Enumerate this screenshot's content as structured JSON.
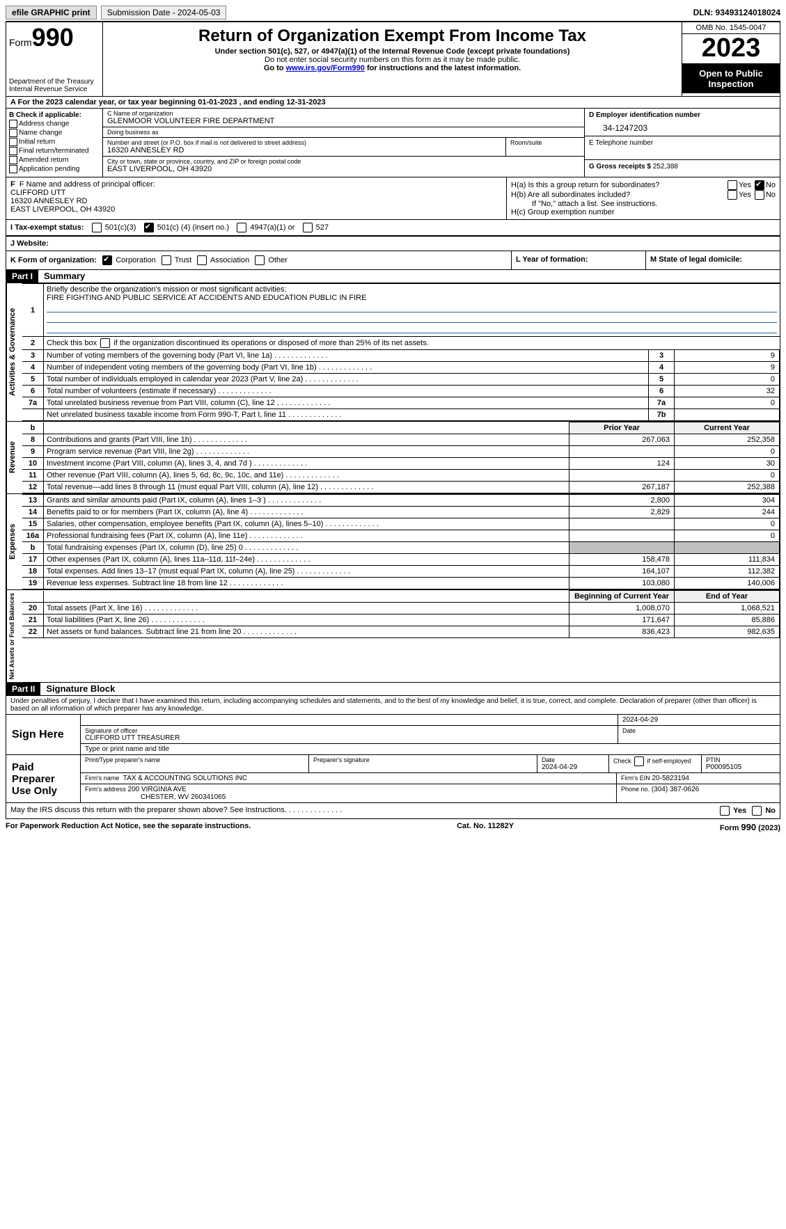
{
  "topbar": {
    "efile": "efile GRAPHIC print",
    "submission": "Submission Date - 2024-05-03",
    "dln": "DLN: 93493124018024"
  },
  "header": {
    "form_word": "Form",
    "form_num": "990",
    "title": "Return of Organization Exempt From Income Tax",
    "subtitle1": "Under section 501(c), 527, or 4947(a)(1) of the Internal Revenue Code (except private foundations)",
    "subtitle2": "Do not enter social security numbers on this form as it may be made public.",
    "subtitle3_pre": "Go to ",
    "subtitle3_link": "www.irs.gov/Form990",
    "subtitle3_post": " for instructions and the latest information.",
    "dept": "Department of the Treasury",
    "irs": "Internal Revenue Service",
    "omb": "OMB No. 1545-0047",
    "year": "2023",
    "inspect": "Open to Public Inspection"
  },
  "period": {
    "text_a": "A For the 2023 calendar year, or tax year beginning ",
    "begin": "01-01-2023",
    "text_mid": " , and ending ",
    "end": "12-31-2023"
  },
  "boxB": {
    "title": "B Check if applicable:",
    "items": [
      "Address change",
      "Name change",
      "Initial return",
      "Final return/terminated",
      "Amended return",
      "Application pending"
    ]
  },
  "boxC": {
    "label_name": "C Name of organization",
    "name": "GLENMOOR VOLUNTEER FIRE DEPARTMENT",
    "label_dba": "Doing business as",
    "dba": "",
    "label_street": "Number and street (or P.O. box if mail is not delivered to street address)",
    "street": "16320 ANNESLEY RD",
    "label_room": "Room/suite",
    "room": "",
    "label_city": "City or town, state or province, country, and ZIP or foreign postal code",
    "city": "EAST LIVERPOOL, OH  43920"
  },
  "boxD": {
    "label": "D Employer identification number",
    "val": "34-1247203"
  },
  "boxE": {
    "label": "E Telephone number",
    "val": ""
  },
  "boxG": {
    "label": "G Gross receipts $",
    "val": "252,388"
  },
  "boxF": {
    "label": "F  Name and address of principal officer:",
    "name": "CLIFFORD UTT",
    "street": "16320 ANNESLEY RD",
    "city": "EAST LIVERPOOL, OH  43920"
  },
  "boxH": {
    "a_label": "H(a)  Is this a group return for subordinates?",
    "a_yes": "Yes",
    "a_no": "No",
    "b_label": "H(b)  Are all subordinates included?",
    "b_yes": "Yes",
    "b_no": "No",
    "b_note": "If \"No,\" attach a list. See instructions.",
    "c_label": "H(c)  Group exemption number"
  },
  "boxI": {
    "label": "I  Tax-exempt status:",
    "o1": "501(c)(3)",
    "o2a": "501(c) (",
    "o2_num": "4",
    "o2b": ") (insert no.)",
    "o3": "4947(a)(1) or",
    "o4": "527"
  },
  "boxJ": {
    "label": "J  Website:",
    "val": ""
  },
  "boxK": {
    "label": "K Form of organization:",
    "o1": "Corporation",
    "o2": "Trust",
    "o3": "Association",
    "o4": "Other"
  },
  "boxL": {
    "label": "L Year of formation:",
    "val": ""
  },
  "boxM": {
    "label": "M State of legal domicile:",
    "val": ""
  },
  "part1": {
    "tag": "Part I",
    "title": "Summary",
    "l1_label": "Briefly describe the organization's mission or most significant activities:",
    "l1_val": "FIRE FIGHTING AND PUBLIC SERVICE AT ACCIDENTS AND EDUCATION PUBLIC IN FIRE",
    "l2": "Check this box      if the organization discontinued its operations or disposed of more than 25% of its net assets.",
    "rows_gov": [
      {
        "n": "3",
        "d": "Number of voting members of the governing body (Part VI, line 1a)",
        "box": "3",
        "v": "9"
      },
      {
        "n": "4",
        "d": "Number of independent voting members of the governing body (Part VI, line 1b)",
        "box": "4",
        "v": "9"
      },
      {
        "n": "5",
        "d": "Total number of individuals employed in calendar year 2023 (Part V, line 2a)",
        "box": "5",
        "v": "0"
      },
      {
        "n": "6",
        "d": "Total number of volunteers (estimate if necessary)",
        "box": "6",
        "v": "32"
      },
      {
        "n": "7a",
        "d": "Total unrelated business revenue from Part VIII, column (C), line 12",
        "box": "7a",
        "v": "0"
      },
      {
        "n": "",
        "d": "Net unrelated business taxable income from Form 990-T, Part I, line 11",
        "box": "7b",
        "v": ""
      }
    ],
    "hdr_prior": "Prior Year",
    "hdr_curr": "Current Year",
    "rows_rev": [
      {
        "n": "8",
        "d": "Contributions and grants (Part VIII, line 1h)",
        "p": "267,063",
        "c": "252,358"
      },
      {
        "n": "9",
        "d": "Program service revenue (Part VIII, line 2g)",
        "p": "",
        "c": "0"
      },
      {
        "n": "10",
        "d": "Investment income (Part VIII, column (A), lines 3, 4, and 7d )",
        "p": "124",
        "c": "30"
      },
      {
        "n": "11",
        "d": "Other revenue (Part VIII, column (A), lines 5, 6d, 8c, 9c, 10c, and 11e)",
        "p": "",
        "c": "0"
      },
      {
        "n": "12",
        "d": "Total revenue—add lines 8 through 11 (must equal Part VIII, column (A), line 12)",
        "p": "267,187",
        "c": "252,388"
      }
    ],
    "rows_exp": [
      {
        "n": "13",
        "d": "Grants and similar amounts paid (Part IX, column (A), lines 1–3 )",
        "p": "2,800",
        "c": "304"
      },
      {
        "n": "14",
        "d": "Benefits paid to or for members (Part IX, column (A), line 4)",
        "p": "2,829",
        "c": "244"
      },
      {
        "n": "15",
        "d": "Salaries, other compensation, employee benefits (Part IX, column (A), lines 5–10)",
        "p": "",
        "c": "0"
      },
      {
        "n": "16a",
        "d": "Professional fundraising fees (Part IX, column (A), line 11e)",
        "p": "",
        "c": "0"
      },
      {
        "n": "b",
        "d": "Total fundraising expenses (Part IX, column (D), line 25) 0",
        "p": "__GREY__",
        "c": "__GREY__",
        "grey": true
      },
      {
        "n": "17",
        "d": "Other expenses (Part IX, column (A), lines 11a–11d, 11f–24e)",
        "p": "158,478",
        "c": "111,834"
      },
      {
        "n": "18",
        "d": "Total expenses. Add lines 13–17 (must equal Part IX, column (A), line 25)",
        "p": "164,107",
        "c": "112,382"
      },
      {
        "n": "19",
        "d": "Revenue less expenses. Subtract line 18 from line 12",
        "p": "103,080",
        "c": "140,006"
      }
    ],
    "hdr_begin": "Beginning of Current Year",
    "hdr_end": "End of Year",
    "rows_na": [
      {
        "n": "20",
        "d": "Total assets (Part X, line 16)",
        "p": "1,008,070",
        "c": "1,068,521"
      },
      {
        "n": "21",
        "d": "Total liabilities (Part X, line 26)",
        "p": "171,647",
        "c": "85,886"
      },
      {
        "n": "22",
        "d": "Net assets or fund balances. Subtract line 21 from line 20",
        "p": "836,423",
        "c": "982,635"
      }
    ],
    "side_gov": "Activities & Governance",
    "side_rev": "Revenue",
    "side_exp": "Expenses",
    "side_na": "Net Assets or Fund Balances"
  },
  "part2": {
    "tag": "Part II",
    "title": "Signature Block",
    "penalty": "Under penalties of perjury, I declare that I have examined this return, including accompanying schedules and statements, and to the best of my knowledge and belief, it is true, correct, and complete. Declaration of preparer (other than officer) is based on all information of which preparer has any knowledge.",
    "sign_here": "Sign Here",
    "sig_officer_label": "Signature of officer",
    "sig_officer_name": "CLIFFORD UTT TREASURER",
    "sig_date_label": "Date",
    "sig_date": "2024-04-29",
    "sig_type_label": "Type or print name and title",
    "paid": "Paid Preparer Use Only",
    "prep_name_label": "Print/Type preparer's name",
    "prep_sig_label": "Preparer's signature",
    "prep_date_label": "Date",
    "prep_date": "2024-04-29",
    "prep_check_label": "Check        if self-employed",
    "ptin_label": "PTIN",
    "ptin": "P00095105",
    "firm_name_label": "Firm's name",
    "firm_name": "TAX & ACCOUNTING SOLUTIONS INC",
    "firm_ein_label": "Firm's EIN",
    "firm_ein": "20-5823194",
    "firm_addr_label": "Firm's address",
    "firm_addr1": "200 VIRGINIA AVE",
    "firm_addr2": "CHESTER, WV  260341065",
    "firm_phone_label": "Phone no.",
    "firm_phone": "(304) 387-0626",
    "discuss": "May the IRS discuss this return with the preparer shown above? See Instructions.",
    "yes": "Yes",
    "no": "No"
  },
  "footer": {
    "pra": "For Paperwork Reduction Act Notice, see the separate instructions.",
    "cat": "Cat. No. 11282Y",
    "form": "Form 990 (2023)"
  }
}
